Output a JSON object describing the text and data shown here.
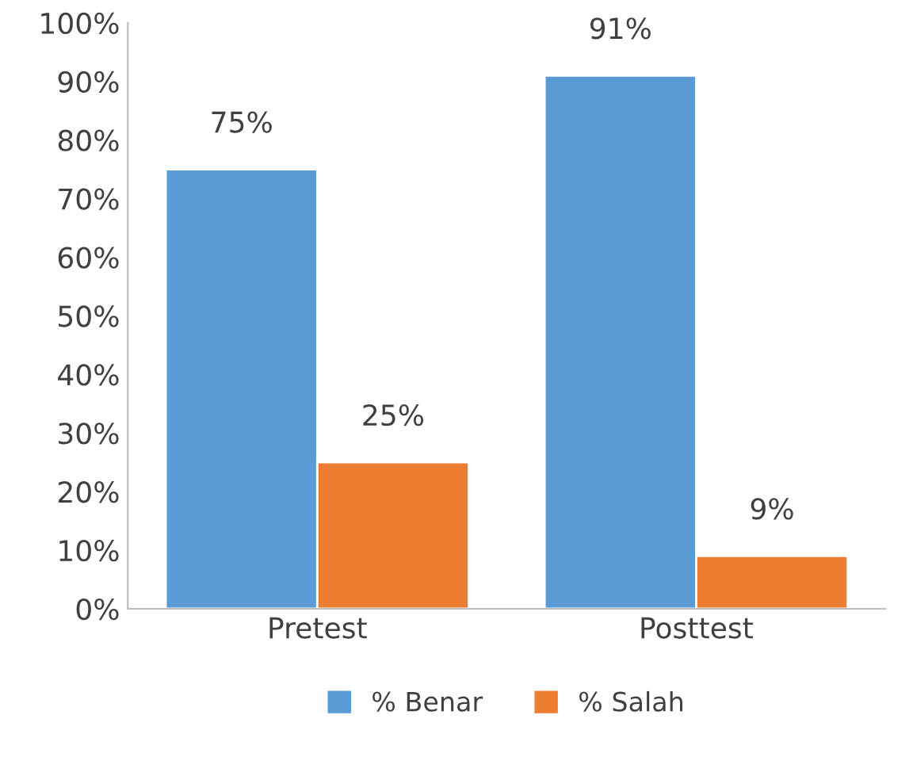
{
  "chart_data": {
    "type": "bar",
    "categories": [
      "Pretest",
      "Posttest"
    ],
    "series": [
      {
        "name": "% Benar",
        "color": "#5b9bd5",
        "values": [
          75,
          91
        ],
        "value_labels": [
          "75%",
          "91%"
        ]
      },
      {
        "name": "% Salah",
        "color": "#ed7d31",
        "values": [
          25,
          9
        ],
        "value_labels": [
          "25%",
          "9%"
        ]
      }
    ],
    "ylim": [
      0,
      100
    ],
    "yticks": [
      {
        "value": 0,
        "label": "0%"
      },
      {
        "value": 10,
        "label": "10%"
      },
      {
        "value": 20,
        "label": "20%"
      },
      {
        "value": 30,
        "label": "30%"
      },
      {
        "value": 40,
        "label": "40%"
      },
      {
        "value": 50,
        "label": "50%"
      },
      {
        "value": 60,
        "label": "60%"
      },
      {
        "value": 70,
        "label": "70%"
      },
      {
        "value": 80,
        "label": "80%"
      },
      {
        "value": 90,
        "label": "90%"
      },
      {
        "value": 100,
        "label": "100%"
      }
    ],
    "grid": false,
    "legend": "bottom"
  }
}
